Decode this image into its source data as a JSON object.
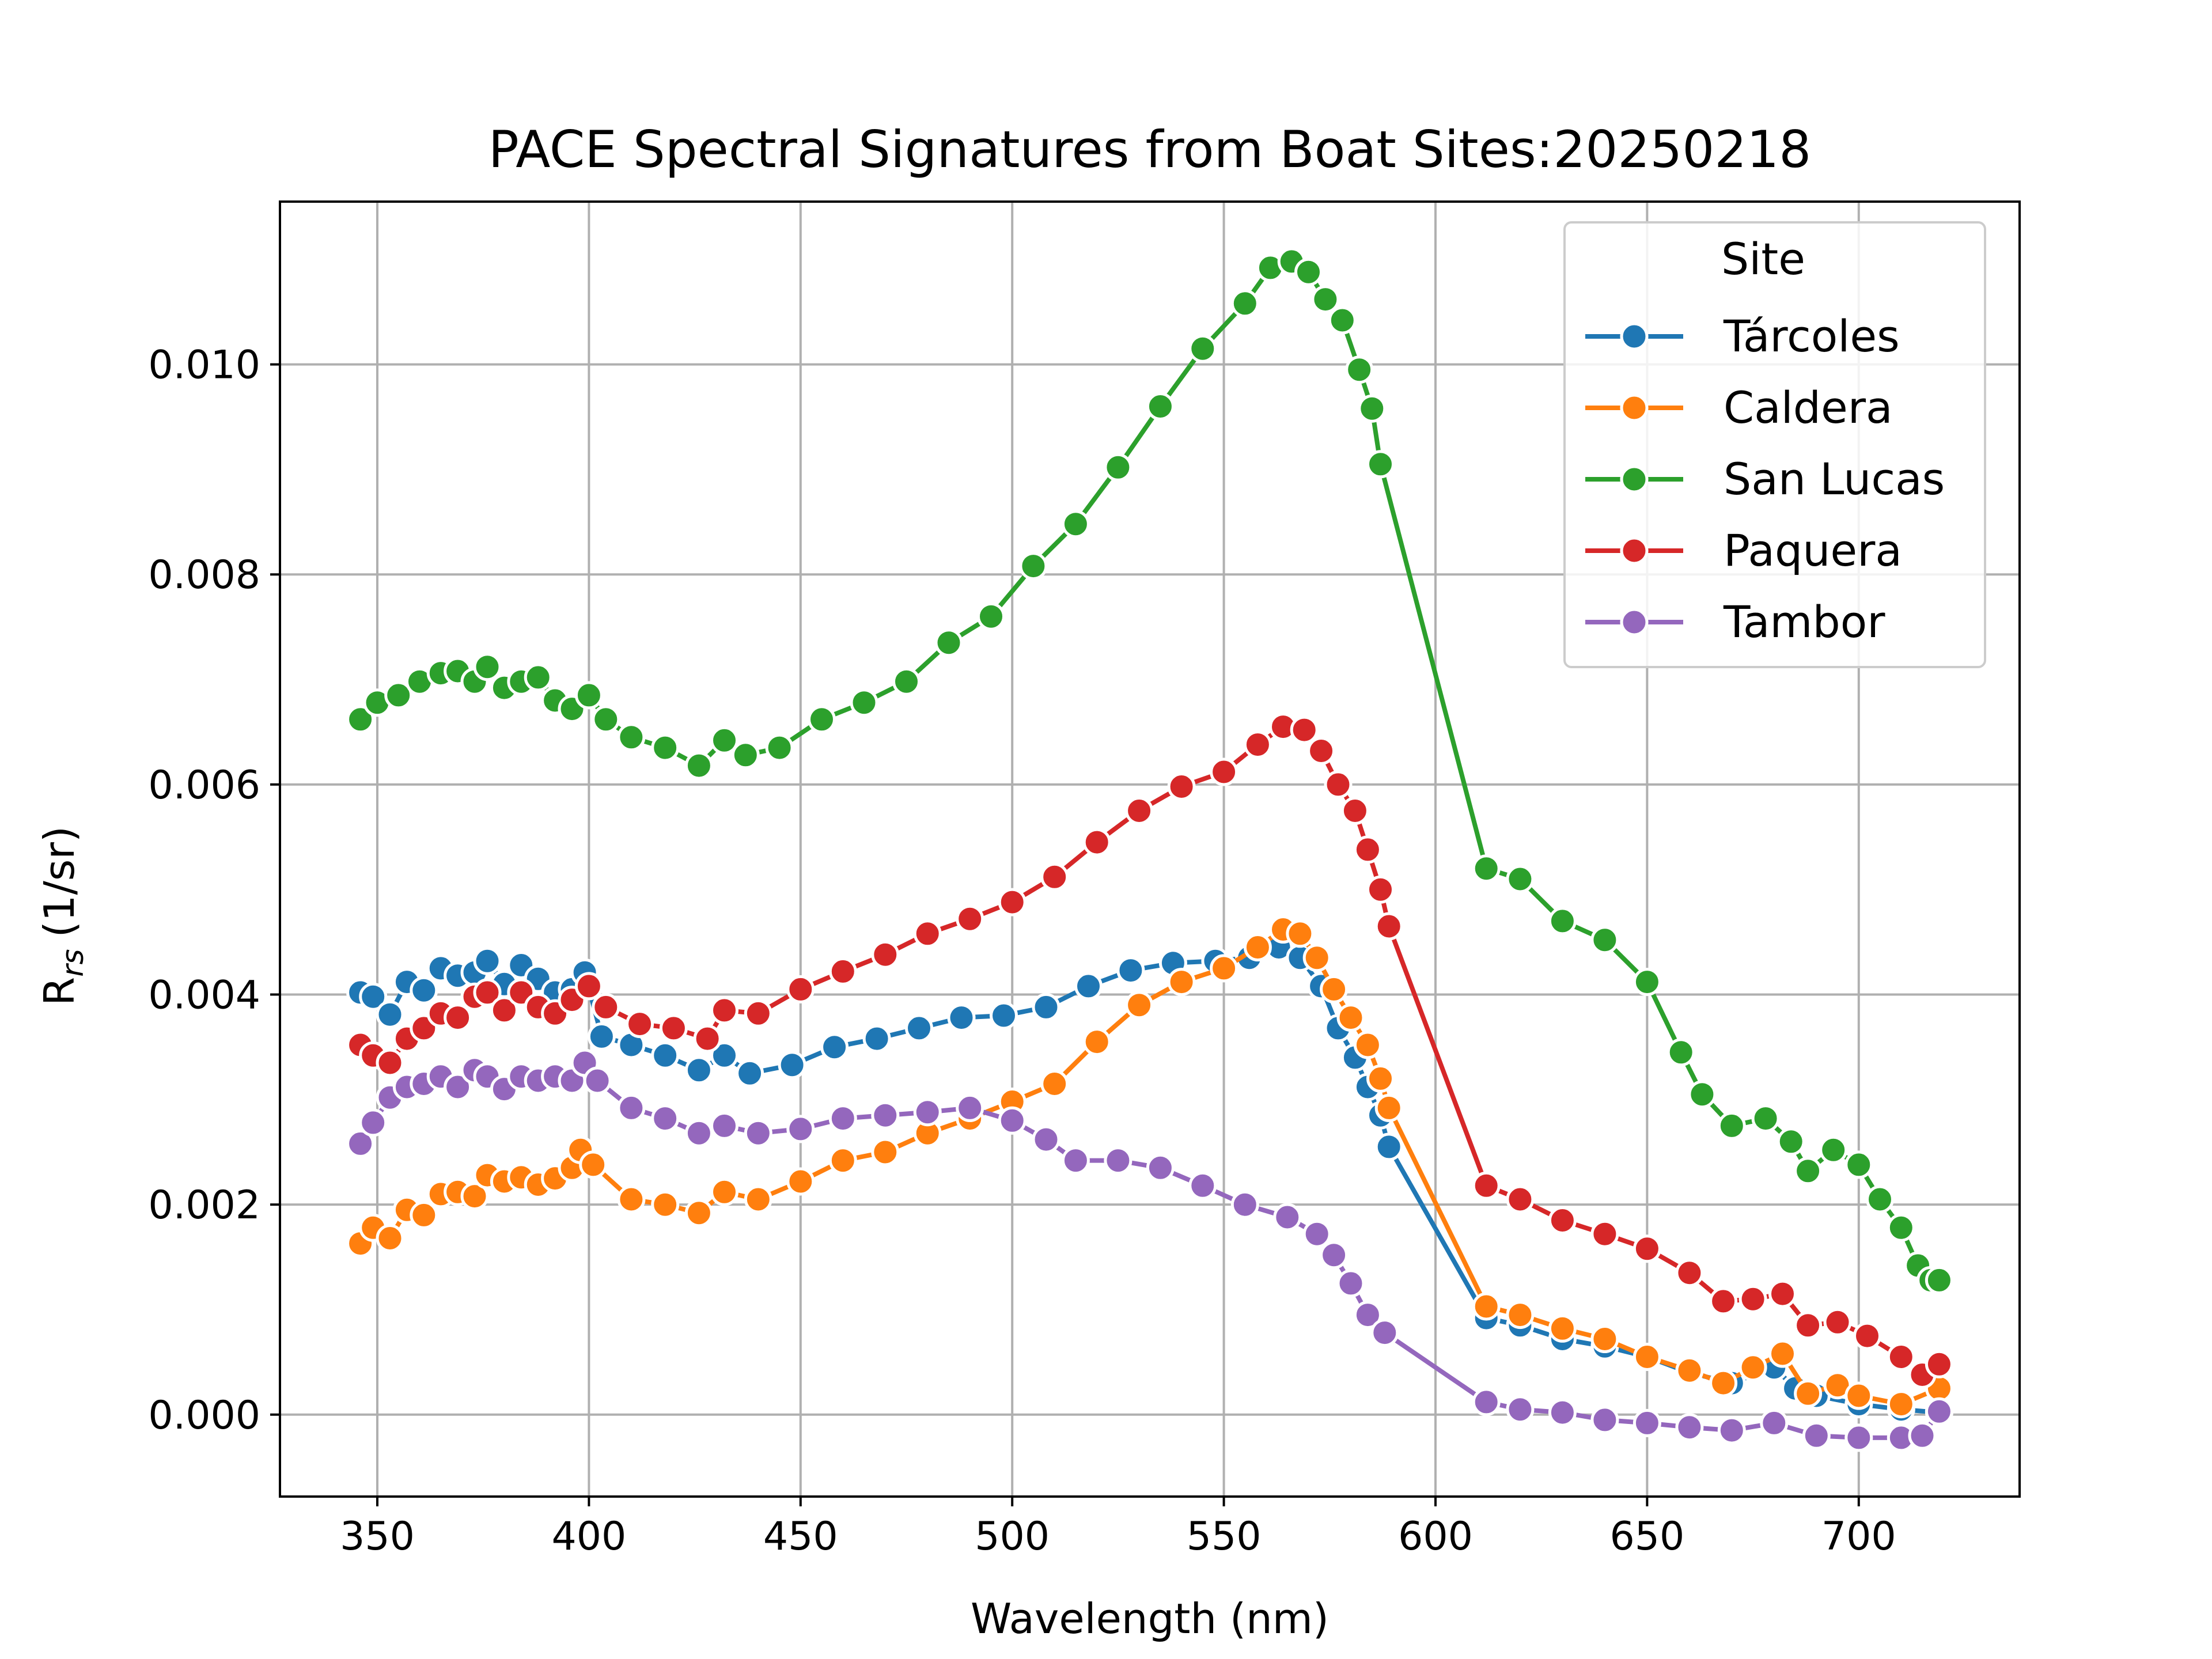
{
  "chart_data": {
    "type": "line",
    "title": "PACE Spectral Signatures from Boat Sites:20250218",
    "xlabel": "Wavelength (nm)",
    "ylabel_main": "R",
    "ylabel_sub": "rs",
    "ylabel_unit": "(1/sr)",
    "xlim": [
      327,
      738
    ],
    "ylim": [
      -0.00078,
      0.01155
    ],
    "xticks": [
      350,
      400,
      450,
      500,
      550,
      600,
      650,
      700
    ],
    "xtick_labels": [
      "350",
      "400",
      "450",
      "500",
      "550",
      "600",
      "650",
      "700"
    ],
    "yticks": [
      0.0,
      0.002,
      0.004,
      0.006,
      0.008,
      0.01
    ],
    "ytick_labels": [
      "0.000",
      "0.002",
      "0.004",
      "0.006",
      "0.008",
      "0.010"
    ],
    "grid": true,
    "legend": {
      "title": "Site",
      "placement": "top-right"
    },
    "series": [
      {
        "name": "Tárcoles",
        "color": "#1f77b4",
        "points": [
          [
            346,
            0.00402
          ],
          [
            349,
            0.00398
          ],
          [
            353,
            0.00381
          ],
          [
            357,
            0.00412
          ],
          [
            361,
            0.00404
          ],
          [
            365,
            0.00425
          ],
          [
            369,
            0.00418
          ],
          [
            373,
            0.00421
          ],
          [
            376,
            0.00432
          ],
          [
            380,
            0.0041
          ],
          [
            384,
            0.00428
          ],
          [
            388,
            0.00415
          ],
          [
            392,
            0.00402
          ],
          [
            396,
            0.00405
          ],
          [
            399,
            0.00421
          ],
          [
            403,
            0.0036
          ],
          [
            410,
            0.00352
          ],
          [
            418,
            0.00342
          ],
          [
            426,
            0.00328
          ],
          [
            432,
            0.00342
          ],
          [
            438,
            0.00325
          ],
          [
            448,
            0.00333
          ],
          [
            458,
            0.0035
          ],
          [
            468,
            0.00358
          ],
          [
            478,
            0.00368
          ],
          [
            488,
            0.00378
          ],
          [
            498,
            0.0038
          ],
          [
            508,
            0.00388
          ],
          [
            518,
            0.00408
          ],
          [
            528,
            0.00423
          ],
          [
            538,
            0.0043
          ],
          [
            548,
            0.00432
          ],
          [
            556,
            0.00435
          ],
          [
            563,
            0.00445
          ],
          [
            568,
            0.00435
          ],
          [
            573,
            0.00408
          ],
          [
            577,
            0.00368
          ],
          [
            581,
            0.0034
          ],
          [
            584,
            0.00312
          ],
          [
            587,
            0.00285
          ],
          [
            589,
            0.00255
          ],
          [
            612,
            0.00092
          ],
          [
            620,
            0.00085
          ],
          [
            630,
            0.00072
          ],
          [
            640,
            0.00065
          ],
          [
            650,
            0.00055
          ],
          [
            660,
            0.0004
          ],
          [
            670,
            0.0003
          ],
          [
            680,
            0.00045
          ],
          [
            685,
            0.00025
          ],
          [
            690,
            0.00018
          ],
          [
            700,
            0.0001
          ],
          [
            710,
            5e-05
          ],
          [
            719,
            2e-05
          ]
        ]
      },
      {
        "name": "Caldera",
        "color": "#ff7f0e",
        "points": [
          [
            346,
            0.00163
          ],
          [
            349,
            0.00178
          ],
          [
            353,
            0.00168
          ],
          [
            357,
            0.00195
          ],
          [
            361,
            0.0019
          ],
          [
            365,
            0.0021
          ],
          [
            369,
            0.00212
          ],
          [
            373,
            0.00208
          ],
          [
            376,
            0.00228
          ],
          [
            380,
            0.00222
          ],
          [
            384,
            0.00226
          ],
          [
            388,
            0.00219
          ],
          [
            392,
            0.00225
          ],
          [
            396,
            0.00235
          ],
          [
            398,
            0.00252
          ],
          [
            401,
            0.00238
          ],
          [
            410,
            0.00205
          ],
          [
            418,
            0.002
          ],
          [
            426,
            0.00192
          ],
          [
            432,
            0.00212
          ],
          [
            440,
            0.00205
          ],
          [
            450,
            0.00222
          ],
          [
            460,
            0.00242
          ],
          [
            470,
            0.0025
          ],
          [
            480,
            0.00268
          ],
          [
            490,
            0.00282
          ],
          [
            500,
            0.00298
          ],
          [
            510,
            0.00315
          ],
          [
            520,
            0.00355
          ],
          [
            530,
            0.0039
          ],
          [
            540,
            0.00412
          ],
          [
            550,
            0.00425
          ],
          [
            558,
            0.00445
          ],
          [
            564,
            0.00462
          ],
          [
            568,
            0.00458
          ],
          [
            572,
            0.00435
          ],
          [
            576,
            0.00405
          ],
          [
            580,
            0.00378
          ],
          [
            584,
            0.00352
          ],
          [
            587,
            0.0032
          ],
          [
            589,
            0.00292
          ],
          [
            612,
            0.00103
          ],
          [
            620,
            0.00095
          ],
          [
            630,
            0.00082
          ],
          [
            640,
            0.00072
          ],
          [
            650,
            0.00055
          ],
          [
            660,
            0.00042
          ],
          [
            668,
            0.0003
          ],
          [
            675,
            0.00045
          ],
          [
            682,
            0.00058
          ],
          [
            688,
            0.0002
          ],
          [
            695,
            0.00028
          ],
          [
            700,
            0.00018
          ],
          [
            710,
            0.0001
          ],
          [
            719,
            0.00025
          ]
        ]
      },
      {
        "name": "San Lucas",
        "color": "#2ca02c",
        "points": [
          [
            346,
            0.00662
          ],
          [
            350,
            0.00678
          ],
          [
            355,
            0.00685
          ],
          [
            360,
            0.00698
          ],
          [
            365,
            0.00706
          ],
          [
            369,
            0.00708
          ],
          [
            373,
            0.00698
          ],
          [
            376,
            0.00712
          ],
          [
            380,
            0.00692
          ],
          [
            384,
            0.00698
          ],
          [
            388,
            0.00702
          ],
          [
            392,
            0.0068
          ],
          [
            396,
            0.00672
          ],
          [
            400,
            0.00685
          ],
          [
            404,
            0.00662
          ],
          [
            410,
            0.00645
          ],
          [
            418,
            0.00635
          ],
          [
            426,
            0.00618
          ],
          [
            432,
            0.00642
          ],
          [
            437,
            0.00628
          ],
          [
            445,
            0.00635
          ],
          [
            455,
            0.00662
          ],
          [
            465,
            0.00678
          ],
          [
            475,
            0.00698
          ],
          [
            485,
            0.00735
          ],
          [
            495,
            0.0076
          ],
          [
            505,
            0.00808
          ],
          [
            515,
            0.00848
          ],
          [
            525,
            0.00902
          ],
          [
            535,
            0.0096
          ],
          [
            545,
            0.01015
          ],
          [
            555,
            0.01058
          ],
          [
            561,
            0.01092
          ],
          [
            566,
            0.01098
          ],
          [
            570,
            0.01088
          ],
          [
            574,
            0.01062
          ],
          [
            578,
            0.01042
          ],
          [
            582,
            0.00995
          ],
          [
            585,
            0.00958
          ],
          [
            587,
            0.00905
          ],
          [
            612,
            0.0052
          ],
          [
            620,
            0.0051
          ],
          [
            630,
            0.0047
          ],
          [
            640,
            0.00452
          ],
          [
            650,
            0.00412
          ],
          [
            658,
            0.00345
          ],
          [
            663,
            0.00305
          ],
          [
            670,
            0.00275
          ],
          [
            678,
            0.00282
          ],
          [
            684,
            0.0026
          ],
          [
            688,
            0.00232
          ],
          [
            694,
            0.00252
          ],
          [
            700,
            0.00238
          ],
          [
            705,
            0.00205
          ],
          [
            710,
            0.00178
          ],
          [
            714,
            0.00142
          ],
          [
            717,
            0.00128
          ],
          [
            719,
            0.00128
          ]
        ]
      },
      {
        "name": "Paquera",
        "color": "#d62728",
        "points": [
          [
            346,
            0.00352
          ],
          [
            349,
            0.00342
          ],
          [
            353,
            0.00335
          ],
          [
            357,
            0.00358
          ],
          [
            361,
            0.00368
          ],
          [
            365,
            0.00382
          ],
          [
            369,
            0.00378
          ],
          [
            373,
            0.00398
          ],
          [
            376,
            0.00402
          ],
          [
            380,
            0.00385
          ],
          [
            384,
            0.00402
          ],
          [
            388,
            0.00388
          ],
          [
            392,
            0.00382
          ],
          [
            396,
            0.00395
          ],
          [
            400,
            0.00408
          ],
          [
            404,
            0.00388
          ],
          [
            412,
            0.00372
          ],
          [
            420,
            0.00368
          ],
          [
            428,
            0.00358
          ],
          [
            432,
            0.00385
          ],
          [
            440,
            0.00382
          ],
          [
            450,
            0.00405
          ],
          [
            460,
            0.00422
          ],
          [
            470,
            0.00438
          ],
          [
            480,
            0.00458
          ],
          [
            490,
            0.00472
          ],
          [
            500,
            0.00488
          ],
          [
            510,
            0.00512
          ],
          [
            520,
            0.00545
          ],
          [
            530,
            0.00575
          ],
          [
            540,
            0.00598
          ],
          [
            550,
            0.00612
          ],
          [
            558,
            0.00638
          ],
          [
            564,
            0.00655
          ],
          [
            569,
            0.00652
          ],
          [
            573,
            0.00632
          ],
          [
            577,
            0.006
          ],
          [
            581,
            0.00575
          ],
          [
            584,
            0.00538
          ],
          [
            587,
            0.005
          ],
          [
            589,
            0.00465
          ],
          [
            612,
            0.00218
          ],
          [
            620,
            0.00205
          ],
          [
            630,
            0.00185
          ],
          [
            640,
            0.00172
          ],
          [
            650,
            0.00158
          ],
          [
            660,
            0.00135
          ],
          [
            668,
            0.00108
          ],
          [
            675,
            0.0011
          ],
          [
            682,
            0.00115
          ],
          [
            688,
            0.00085
          ],
          [
            695,
            0.00088
          ],
          [
            702,
            0.00075
          ],
          [
            710,
            0.00055
          ],
          [
            715,
            0.00038
          ],
          [
            719,
            0.00048
          ]
        ]
      },
      {
        "name": "Tambor",
        "color": "#9467bd",
        "points": [
          [
            346,
            0.00258
          ],
          [
            349,
            0.00278
          ],
          [
            353,
            0.00302
          ],
          [
            357,
            0.00312
          ],
          [
            361,
            0.00315
          ],
          [
            365,
            0.00322
          ],
          [
            369,
            0.00312
          ],
          [
            373,
            0.00328
          ],
          [
            376,
            0.00322
          ],
          [
            380,
            0.0031
          ],
          [
            384,
            0.00322
          ],
          [
            388,
            0.00318
          ],
          [
            392,
            0.00322
          ],
          [
            396,
            0.00318
          ],
          [
            399,
            0.00335
          ],
          [
            402,
            0.00318
          ],
          [
            410,
            0.00292
          ],
          [
            418,
            0.00282
          ],
          [
            426,
            0.00268
          ],
          [
            432,
            0.00275
          ],
          [
            440,
            0.00268
          ],
          [
            450,
            0.00272
          ],
          [
            460,
            0.00282
          ],
          [
            470,
            0.00285
          ],
          [
            480,
            0.00288
          ],
          [
            490,
            0.00292
          ],
          [
            500,
            0.0028
          ],
          [
            508,
            0.00262
          ],
          [
            515,
            0.00242
          ],
          [
            525,
            0.00242
          ],
          [
            535,
            0.00235
          ],
          [
            545,
            0.00218
          ],
          [
            555,
            0.002
          ],
          [
            565,
            0.00188
          ],
          [
            572,
            0.00172
          ],
          [
            576,
            0.00152
          ],
          [
            580,
            0.00125
          ],
          [
            584,
            0.00095
          ],
          [
            588,
            0.00078
          ],
          [
            612,
            0.00012
          ],
          [
            620,
            5e-05
          ],
          [
            630,
            2e-05
          ],
          [
            640,
            -5e-05
          ],
          [
            650,
            -8e-05
          ],
          [
            660,
            -0.00012
          ],
          [
            670,
            -0.00015
          ],
          [
            680,
            -8e-05
          ],
          [
            690,
            -0.0002
          ],
          [
            700,
            -0.00022
          ],
          [
            710,
            -0.00022
          ],
          [
            715,
            -0.0002
          ],
          [
            719,
            3e-05
          ]
        ]
      }
    ]
  }
}
